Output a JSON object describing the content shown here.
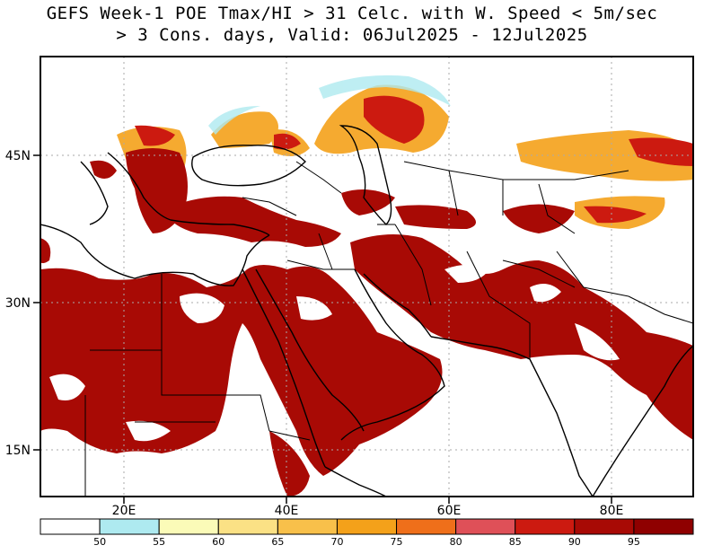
{
  "title": {
    "line1": "GEFS Week-1 POE Tmax/HI > 31 Celc. with W. Speed < 5m/sec",
    "line2": "> 3 Cons. days, Valid: 06Jul2025 - 12Jul2025"
  },
  "axes": {
    "lat_labels": [
      "45N",
      "30N",
      "15N"
    ],
    "lon_labels": [
      "20E",
      "40E",
      "60E",
      "80E"
    ]
  },
  "colorbar": {
    "labels": [
      "50",
      "55",
      "60",
      "65",
      "70",
      "75",
      "80",
      "85",
      "90",
      "95"
    ],
    "colors": [
      "#ffffff",
      "#aeeaf0",
      "#fbfbb8",
      "#fbe185",
      "#f8c04a",
      "#f4a11a",
      "#ef6f1a",
      "#df5058",
      "#cc1a10",
      "#a80a05",
      "#8f0000"
    ]
  },
  "colors": {
    "land_line": "#000000",
    "grid": "#aaaaaa"
  }
}
